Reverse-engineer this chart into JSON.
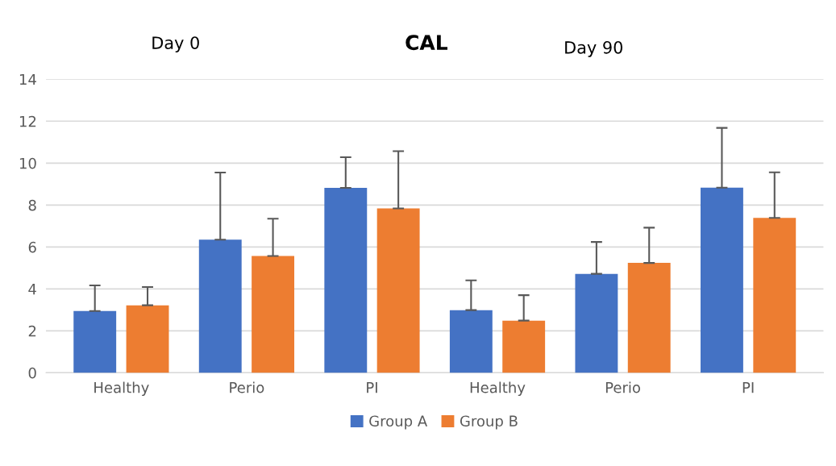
{
  "chart_data": {
    "type": "bar",
    "title": "CAL",
    "annotations": [
      "Day 0",
      "Day 90"
    ],
    "categories": [
      "Healthy",
      "Perio",
      "PI",
      "Healthy",
      "Perio",
      "PI"
    ],
    "series": [
      {
        "name": "Group A",
        "color": "#4472c4",
        "values": [
          2.95,
          6.35,
          8.82,
          2.99,
          4.72,
          8.83
        ],
        "errors": [
          1.22,
          3.2,
          1.46,
          1.42,
          1.52,
          2.85
        ]
      },
      {
        "name": "Group B",
        "color": "#ed7d31",
        "values": [
          3.22,
          5.57,
          7.84,
          2.49,
          5.24,
          7.39
        ],
        "errors": [
          0.87,
          1.78,
          2.73,
          1.21,
          1.68,
          2.17
        ]
      }
    ],
    "ylim": [
      0,
      14
    ],
    "yticks": [
      0,
      2,
      4,
      6,
      8,
      10,
      12,
      14
    ],
    "grid": "y",
    "legend": "bottom"
  }
}
